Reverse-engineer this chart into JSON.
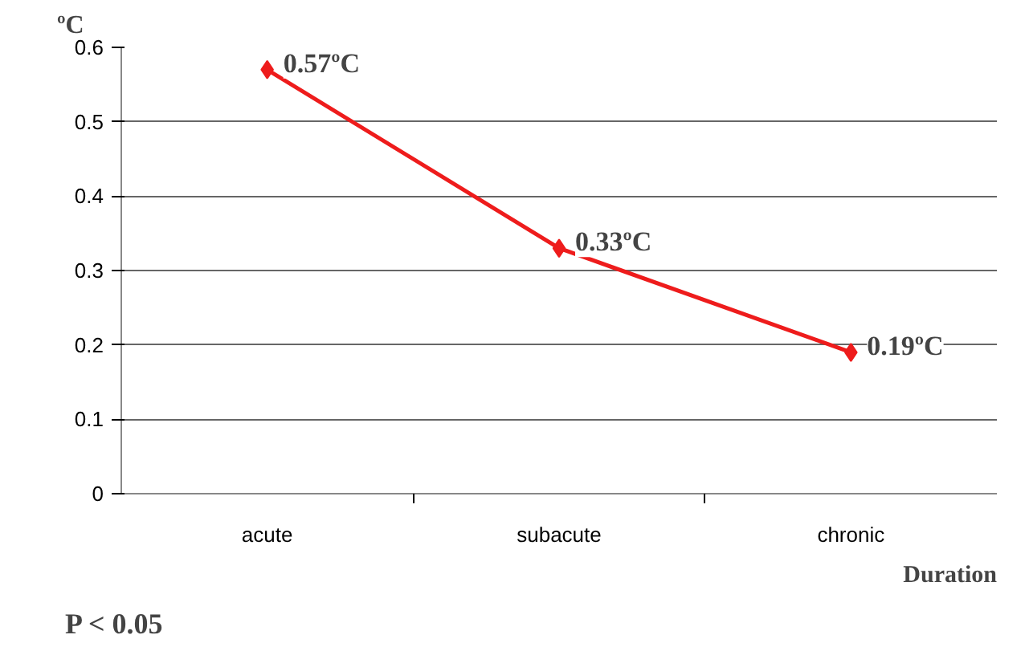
{
  "chart_data": {
    "type": "line",
    "ylabel": "ºC",
    "xlabel": "Duration",
    "categories": [
      "acute",
      "subacute",
      "chronic"
    ],
    "series": [
      {
        "color": "#ee1c1c",
        "values": [
          0.57,
          0.33,
          0.19
        ],
        "value_labels": [
          "0.57ºC",
          "0.33ºC",
          "0.19ºC"
        ]
      }
    ],
    "ylim": [
      0,
      0.6
    ],
    "yticks": [
      0,
      0.1,
      0.2,
      0.3,
      0.4,
      0.5,
      0.6
    ],
    "grid": "y",
    "marker": "diamond",
    "line_style": "solid",
    "annotations": [
      "P < 0.05"
    ]
  }
}
